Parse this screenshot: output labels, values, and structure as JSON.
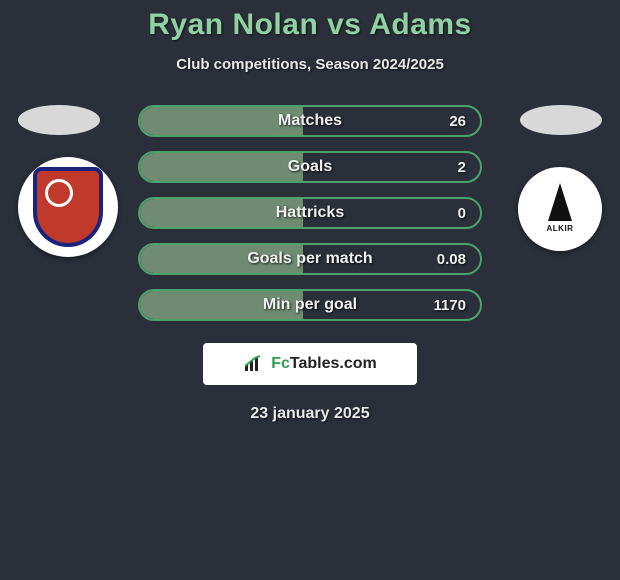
{
  "title": "Ryan Nolan vs Adams",
  "subtitle": "Club competitions, Season 2024/2025",
  "date": "23 january 2025",
  "brand": {
    "text_fc": "Fc",
    "text_rest": "Tables.com"
  },
  "colors": {
    "bg": "#2a2f3a",
    "title": "#8fd1a0",
    "pill_border": "#4aa36a",
    "pill_fill": "#6f8b72",
    "text": "#f0f0f0"
  },
  "stats": [
    {
      "label": "Matches",
      "value": "26",
      "fill_pct": 48
    },
    {
      "label": "Goals",
      "value": "2",
      "fill_pct": 48
    },
    {
      "label": "Hattricks",
      "value": "0",
      "fill_pct": 48
    },
    {
      "label": "Goals per match",
      "value": "0.08",
      "fill_pct": 48
    },
    {
      "label": "Min per goal",
      "value": "1170",
      "fill_pct": 48
    }
  ],
  "badge_right_text": "ALKIR"
}
